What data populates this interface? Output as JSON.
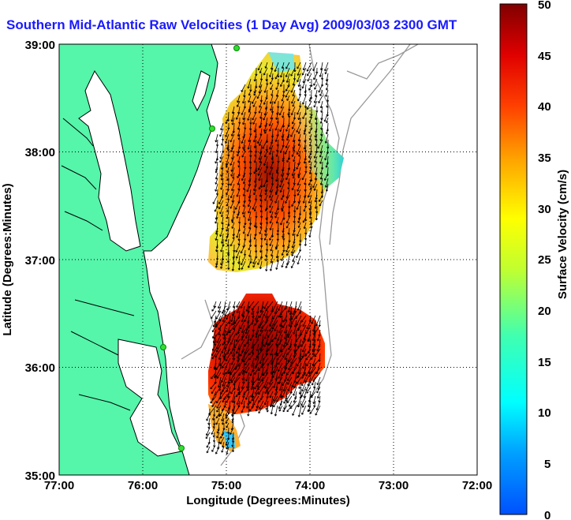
{
  "title": "Southern Mid-Atlantic Raw Velocities (1 Day Avg) 2009/03/03 2300 GMT",
  "x_axis": {
    "label": "Longitude (Degrees:Minutes)",
    "ticks": [
      "77:00",
      "76:00",
      "75:00",
      "74:00",
      "73:00",
      "72:00"
    ]
  },
  "y_axis": {
    "label": "Latitude (Degrees:Minutes)",
    "ticks": [
      "39:00",
      "38:00",
      "37:00",
      "36:00",
      "35:00"
    ]
  },
  "colorbar": {
    "label": "Surface Velocity (cm/s)",
    "ticks": [
      "50",
      "45",
      "40",
      "35",
      "30",
      "25",
      "20",
      "15",
      "10",
      "5",
      "0"
    ],
    "range": [
      0,
      50
    ]
  },
  "map": {
    "lon_range": [
      -77,
      -72
    ],
    "lat_range": [
      35,
      39
    ],
    "land_color": "#55f5aa",
    "grid": "dotted"
  }
}
